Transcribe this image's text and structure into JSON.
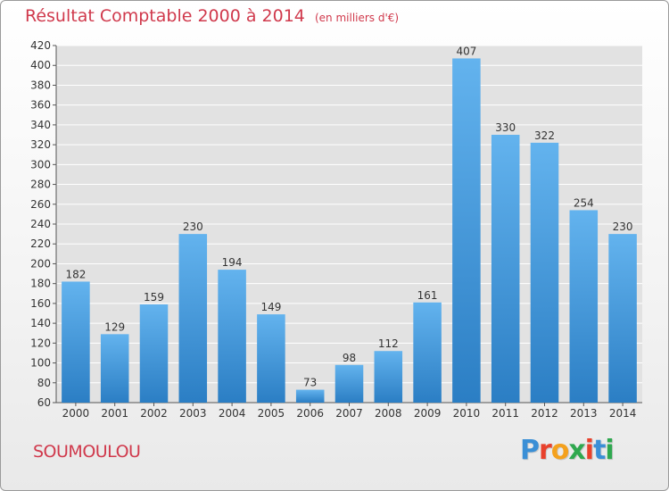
{
  "header": {
    "title": "Résultat Comptable 2000 à 2014",
    "subtitle": "(en milliers d'€)"
  },
  "footer": {
    "commune": "SOUMOULOU",
    "logo_text": "Proxiti"
  },
  "colors": {
    "title": "#d0394c",
    "bar_top": "#63b3ee",
    "bar_bottom": "#2b7ec4",
    "plot_bg": "#e2e2e2",
    "grid": "#ffffff",
    "logo_letters": [
      "#3a8fd6",
      "#e8412c",
      "#f4a11d",
      "#2fa84f",
      "#e8412c",
      "#3a8fd6",
      "#2fa84f"
    ]
  },
  "chart_data": {
    "type": "bar",
    "categories": [
      "2000",
      "2001",
      "2002",
      "2003",
      "2004",
      "2005",
      "2006",
      "2007",
      "2008",
      "2009",
      "2010",
      "2011",
      "2012",
      "2013",
      "2014"
    ],
    "values": [
      182,
      129,
      159,
      230,
      194,
      149,
      73,
      98,
      112,
      161,
      407,
      330,
      322,
      254,
      230
    ],
    "ylim": [
      60,
      420
    ],
    "yticks": [
      60,
      80,
      100,
      120,
      140,
      160,
      180,
      200,
      220,
      240,
      260,
      280,
      300,
      320,
      340,
      360,
      380,
      400,
      420
    ],
    "grid": true,
    "data_labels": true
  }
}
